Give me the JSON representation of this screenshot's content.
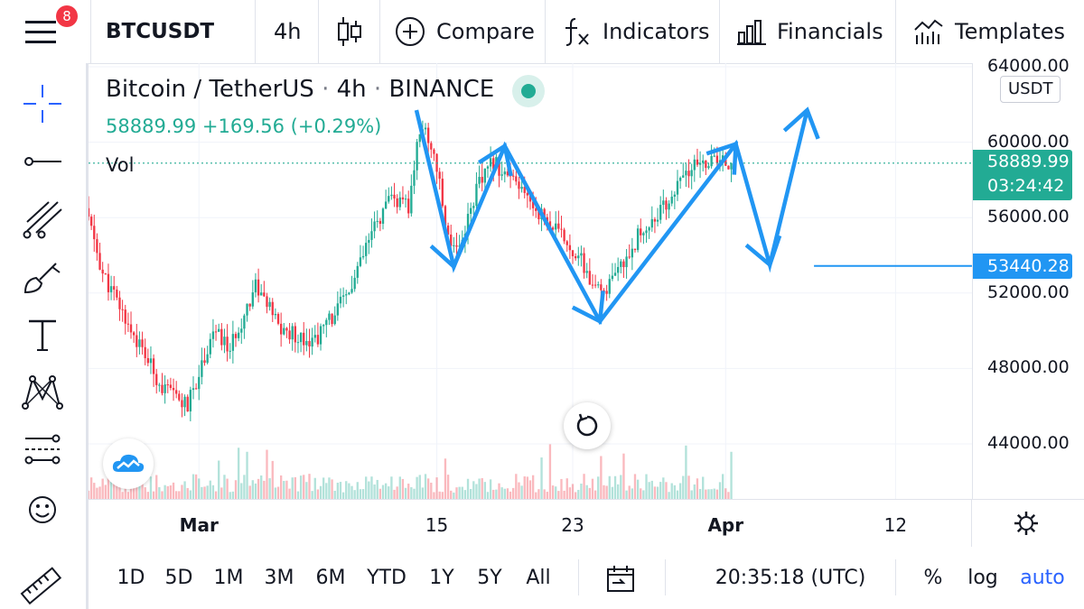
{
  "toolbar": {
    "badge_count": "8",
    "symbol": "BTCUSDT",
    "interval": "4h",
    "compare": "Compare",
    "indicators": "Indicators",
    "financials": "Financials",
    "templates": "Templates"
  },
  "legend": {
    "title": "Bitcoin / TetherUS",
    "interval": "4h",
    "exchange": "BINANCE",
    "last_price": "58889.99",
    "change": "+169.56",
    "change_pct": "(+0.29%)",
    "volume_label": "Vol"
  },
  "price_axis": {
    "currency": "USDT",
    "last_price_tag": "58889.99",
    "countdown": "03:24:42",
    "horizontal_line_tag": "53440.28"
  },
  "bottom_bar": {
    "ranges": [
      "1D",
      "5D",
      "1M",
      "3M",
      "6M",
      "YTD",
      "1Y",
      "5Y",
      "All"
    ],
    "clock": "20:35:18 (UTC)",
    "percent": "%",
    "log": "log",
    "auto": "auto"
  },
  "colors": {
    "up": "#22ab94",
    "down": "#f23645",
    "drawing": "#2196f3",
    "accent": "#2962ff"
  },
  "chart_data": {
    "type": "candlestick",
    "symbol": "BTCUSDT",
    "timeframe": "4h",
    "ylim": [
      42000,
      65000
    ],
    "y_ticks": [
      44000,
      48000,
      52000,
      56000,
      60000,
      64000
    ],
    "x_ticks": [
      {
        "label": "Mar",
        "day": 1
      },
      {
        "label": "15",
        "day": 15
      },
      {
        "label": "23",
        "day": 23
      },
      {
        "label": "Apr",
        "day": 32
      },
      {
        "label": "12",
        "day": 42
      }
    ],
    "x_range_days": [
      -5.5,
      46.5
    ],
    "anchors": [
      {
        "day": -5.5,
        "price": 56500
      },
      {
        "day": -4.5,
        "price": 53000
      },
      {
        "day": -2.5,
        "price": 49500
      },
      {
        "day": -1.0,
        "price": 47000
      },
      {
        "day": 0.5,
        "price": 46000
      },
      {
        "day": 2.0,
        "price": 50000
      },
      {
        "day": 3.0,
        "price": 49000
      },
      {
        "day": 4.5,
        "price": 52500
      },
      {
        "day": 6.0,
        "price": 50000
      },
      {
        "day": 8.0,
        "price": 49500
      },
      {
        "day": 10.0,
        "price": 52000
      },
      {
        "day": 11.5,
        "price": 55500
      },
      {
        "day": 12.5,
        "price": 57000
      },
      {
        "day": 13.5,
        "price": 56500
      },
      {
        "day": 14.2,
        "price": 61000
      },
      {
        "day": 15.0,
        "price": 59500
      },
      {
        "day": 15.8,
        "price": 55000
      },
      {
        "day": 16.5,
        "price": 54500
      },
      {
        "day": 17.5,
        "price": 57500
      },
      {
        "day": 18.5,
        "price": 59000
      },
      {
        "day": 19.5,
        "price": 58000
      },
      {
        "day": 21.0,
        "price": 56500
      },
      {
        "day": 22.0,
        "price": 55500
      },
      {
        "day": 23.5,
        "price": 54000
      },
      {
        "day": 24.5,
        "price": 52000
      },
      {
        "day": 25.5,
        "price": 52500
      },
      {
        "day": 27.0,
        "price": 55000
      },
      {
        "day": 28.5,
        "price": 56500
      },
      {
        "day": 30.0,
        "price": 58500
      },
      {
        "day": 31.0,
        "price": 59000
      },
      {
        "day": 32.5,
        "price": 58900
      }
    ],
    "last_price": 58889.99,
    "horizontal_line": {
      "price": 53440.28,
      "from_day": 37.2
    },
    "drawing_path": [
      {
        "day": 13.8,
        "price": 61700
      },
      {
        "day": 16.0,
        "price": 53400
      },
      {
        "day": 19.0,
        "price": 59800
      },
      {
        "day": 24.6,
        "price": 50500
      },
      {
        "day": 32.6,
        "price": 59900
      },
      {
        "day": 34.6,
        "price": 53500
      },
      {
        "day": 36.8,
        "price": 61700
      }
    ]
  }
}
